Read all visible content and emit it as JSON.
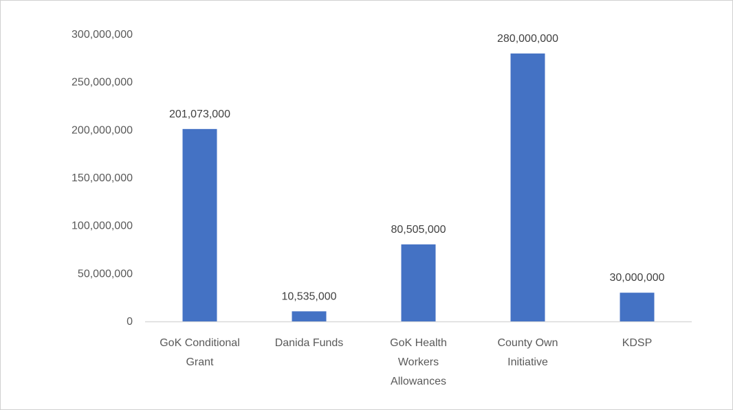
{
  "chart_data": {
    "type": "bar",
    "title": "",
    "xlabel": "",
    "ylabel": "",
    "categories": [
      "GoK Conditional Grant",
      "Danida Funds",
      "GoK Health Workers Allowances",
      "County Own Initiative",
      "KDSP"
    ],
    "category_label_lines": [
      [
        "GoK Conditional",
        "Grant"
      ],
      [
        "Danida Funds"
      ],
      [
        "GoK Health",
        "Workers",
        "Allowances"
      ],
      [
        "County Own",
        "Initiative"
      ],
      [
        "KDSP"
      ]
    ],
    "values": [
      201073000,
      10535000,
      80505000,
      280000000,
      30000000
    ],
    "data_labels": [
      "201,073,000",
      "10,535,000",
      "80,505,000",
      "280,000,000",
      "30,000,000"
    ],
    "ylim": [
      0,
      300000000
    ],
    "y_ticks": [
      0,
      50000000,
      100000000,
      150000000,
      200000000,
      250000000,
      300000000
    ],
    "y_tick_labels": [
      "0",
      "50,000,000",
      "100,000,000",
      "150,000,000",
      "200,000,000",
      "250,000,000",
      "300,000,000"
    ],
    "grid": false,
    "legend": "none",
    "bar_color": "#4472c4",
    "axis_color": "#d9d9d9"
  }
}
